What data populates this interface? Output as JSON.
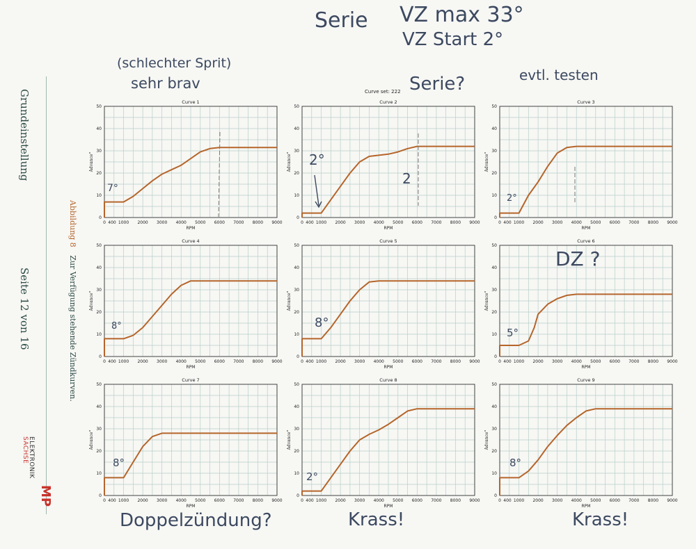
{
  "sidebar": {
    "section": "Grundeinstellung",
    "page": "Seite 12 von 16",
    "figure_label": "Abbildung 8",
    "figure_caption": "Zur Verfügung stehende Zündkurven.",
    "logo_text1": "ELEKTRONIK",
    "logo_text2": "SACHSE",
    "logo_mark": "MP"
  },
  "header": {
    "curve_set": "Curve set: 222"
  },
  "handwriting": {
    "top1": "Serie",
    "top2": "VZ max 33°",
    "top3": "VZ Start 2°",
    "note_c1a": "(schlechter Sprit)",
    "note_c1b": "sehr brav",
    "note_c2": "Serie?",
    "note_c3": "evtl. testen",
    "note_c6": "DZ ?",
    "bottom1": "Doppelzündung?",
    "bottom2": "Krass!",
    "bottom3": "Krass!",
    "mark_c1": "7°",
    "mark_c2": "2°",
    "mark_c2b": "2",
    "mark_c3": "2°",
    "mark_c4": "8°",
    "mark_c5": "8°",
    "mark_c6": "5°",
    "mark_c7": "8°",
    "mark_c8": "2°",
    "mark_c9": "8°"
  },
  "colors": {
    "curve": "#b5652a",
    "grid": "#b7cfc9",
    "axis": "#333333",
    "ink": "#3c4960"
  },
  "chart_data": [
    {
      "type": "line",
      "title": "Curve 1",
      "xlabel": "RPM",
      "ylabel": "Advance°",
      "xlim": [
        0,
        9000
      ],
      "ylim": [
        0,
        50
      ],
      "xticks": [
        0,
        400,
        1000,
        2000,
        3000,
        4000,
        5000,
        6000,
        7000,
        8000,
        9000
      ],
      "yticks": [
        0,
        10,
        20,
        30,
        40,
        50
      ],
      "x": [
        0,
        0,
        400,
        1000,
        1500,
        2000,
        2500,
        3000,
        3500,
        4000,
        4500,
        5000,
        5500,
        6000,
        6500,
        9000
      ],
      "y": [
        0,
        7,
        7,
        7,
        9.5,
        13,
        16.5,
        19.5,
        21.5,
        23.5,
        26.5,
        29.5,
        31,
        31.5,
        31.5,
        31.5
      ]
    },
    {
      "type": "line",
      "title": "Curve 2",
      "xlabel": "RPM",
      "ylabel": "Advance°",
      "xlim": [
        0,
        9000
      ],
      "ylim": [
        0,
        50
      ],
      "xticks": [
        0,
        400,
        1000,
        2000,
        3000,
        4000,
        5000,
        6000,
        7000,
        8000,
        9000
      ],
      "yticks": [
        0,
        10,
        20,
        30,
        40,
        50
      ],
      "x": [
        0,
        0,
        400,
        1000,
        1500,
        2000,
        2500,
        3000,
        3500,
        4000,
        4500,
        5000,
        5500,
        6000,
        9000
      ],
      "y": [
        0,
        2,
        2,
        2,
        8,
        14,
        20,
        25,
        27.5,
        28,
        28.5,
        29.5,
        31,
        32,
        32
      ]
    },
    {
      "type": "line",
      "title": "Curve 3",
      "xlabel": "RPM",
      "ylabel": "Advance°",
      "xlim": [
        0,
        9000
      ],
      "ylim": [
        0,
        50
      ],
      "xticks": [
        0,
        400,
        1000,
        2000,
        3000,
        4000,
        5000,
        6000,
        7000,
        8000,
        9000
      ],
      "yticks": [
        0,
        10,
        20,
        30,
        40,
        50
      ],
      "x": [
        0,
        0,
        400,
        1000,
        1500,
        2000,
        2500,
        3000,
        3500,
        4000,
        4500,
        5000,
        9000
      ],
      "y": [
        0,
        2,
        2,
        2,
        10,
        16,
        23,
        29,
        31.5,
        32,
        32,
        32,
        32
      ]
    },
    {
      "type": "line",
      "title": "Curve 4",
      "xlabel": "RPM",
      "ylabel": "Advance°",
      "xlim": [
        0,
        9000
      ],
      "ylim": [
        0,
        50
      ],
      "xticks": [
        0,
        400,
        1000,
        2000,
        3000,
        4000,
        5000,
        6000,
        7000,
        8000,
        9000
      ],
      "yticks": [
        0,
        10,
        20,
        30,
        40,
        50
      ],
      "x": [
        0,
        0,
        400,
        1000,
        1500,
        2000,
        2500,
        3000,
        3500,
        4000,
        4500,
        5000,
        9000
      ],
      "y": [
        0,
        8,
        8,
        8,
        9.5,
        13,
        18,
        23,
        28,
        32,
        34,
        34,
        34
      ]
    },
    {
      "type": "line",
      "title": "Curve 5",
      "xlabel": "RPM",
      "ylabel": "Advance°",
      "xlim": [
        0,
        9000
      ],
      "ylim": [
        0,
        50
      ],
      "xticks": [
        0,
        400,
        1000,
        2000,
        3000,
        4000,
        5000,
        6000,
        7000,
        8000,
        9000
      ],
      "yticks": [
        0,
        10,
        20,
        30,
        40,
        50
      ],
      "x": [
        0,
        0,
        400,
        1000,
        1500,
        2000,
        2500,
        3000,
        3500,
        4000,
        9000
      ],
      "y": [
        0,
        8,
        8,
        8,
        13,
        19,
        25,
        30,
        33.5,
        34,
        34
      ]
    },
    {
      "type": "line",
      "title": "Curve 6",
      "xlabel": "RPM",
      "ylabel": "Advance°",
      "xlim": [
        0,
        9000
      ],
      "ylim": [
        0,
        50
      ],
      "xticks": [
        0,
        400,
        1000,
        2000,
        3000,
        4000,
        5000,
        6000,
        7000,
        8000,
        9000
      ],
      "yticks": [
        0,
        10,
        20,
        30,
        40,
        50
      ],
      "x": [
        0,
        0,
        400,
        1000,
        1500,
        1800,
        2000,
        2500,
        3000,
        3500,
        4000,
        4500,
        9000
      ],
      "y": [
        0,
        5,
        5,
        5,
        7,
        13,
        19,
        23.5,
        26,
        27.5,
        28,
        28,
        28
      ]
    },
    {
      "type": "line",
      "title": "Curve 7",
      "xlabel": "RPM",
      "ylabel": "Advance°",
      "xlim": [
        0,
        9000
      ],
      "ylim": [
        0,
        50
      ],
      "xticks": [
        0,
        400,
        1000,
        2000,
        3000,
        4000,
        5000,
        6000,
        7000,
        8000,
        9000
      ],
      "yticks": [
        0,
        10,
        20,
        30,
        40,
        50
      ],
      "x": [
        0,
        0,
        400,
        1000,
        1500,
        2000,
        2500,
        3000,
        9000
      ],
      "y": [
        0,
        8,
        8,
        8,
        15,
        22,
        26.5,
        28,
        28
      ]
    },
    {
      "type": "line",
      "title": "Curve 8",
      "xlabel": "RPM",
      "ylabel": "Advance°",
      "xlim": [
        0,
        9000
      ],
      "ylim": [
        0,
        50
      ],
      "xticks": [
        0,
        400,
        1000,
        2000,
        3000,
        4000,
        5000,
        6000,
        7000,
        8000,
        9000
      ],
      "yticks": [
        0,
        10,
        20,
        30,
        40,
        50
      ],
      "x": [
        0,
        0,
        400,
        1000,
        1500,
        2000,
        2500,
        3000,
        3500,
        4000,
        4500,
        5000,
        5500,
        6000,
        9000
      ],
      "y": [
        0,
        2,
        2,
        2,
        8,
        14,
        20,
        25,
        27.5,
        29.5,
        32,
        35,
        38,
        39,
        39
      ]
    },
    {
      "type": "line",
      "title": "Curve 9",
      "xlabel": "RPM",
      "ylabel": "Advance°",
      "xlim": [
        0,
        9000
      ],
      "ylim": [
        0,
        50
      ],
      "xticks": [
        0,
        400,
        1000,
        2000,
        3000,
        4000,
        5000,
        6000,
        7000,
        8000,
        9000
      ],
      "yticks": [
        0,
        10,
        20,
        30,
        40,
        50
      ],
      "x": [
        0,
        0,
        400,
        1000,
        1500,
        2000,
        2500,
        3000,
        3500,
        4000,
        4500,
        5000,
        9000
      ],
      "y": [
        0,
        8,
        8,
        8,
        11,
        16,
        22,
        27,
        31.5,
        35,
        38,
        39,
        39
      ]
    }
  ]
}
